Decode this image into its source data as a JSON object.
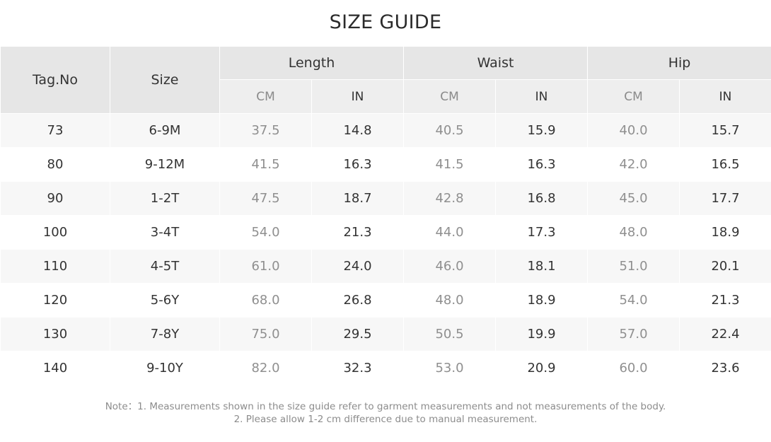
{
  "title": "SIZE GUIDE",
  "headers": {
    "tag": "Tag.No",
    "size": "Size",
    "length": "Length",
    "waist": "Waist",
    "hip": "Hip",
    "cm": "CM",
    "in": "IN"
  },
  "rows": [
    {
      "tag": "73",
      "size": "6-9M",
      "length_cm": "37.5",
      "length_in": "14.8",
      "waist_cm": "40.5",
      "waist_in": "15.9",
      "hip_cm": "40.0",
      "hip_in": "15.7"
    },
    {
      "tag": "80",
      "size": "9-12M",
      "length_cm": "41.5",
      "length_in": "16.3",
      "waist_cm": "41.5",
      "waist_in": "16.3",
      "hip_cm": "42.0",
      "hip_in": "16.5"
    },
    {
      "tag": "90",
      "size": "1-2T",
      "length_cm": "47.5",
      "length_in": "18.7",
      "waist_cm": "42.8",
      "waist_in": "16.8",
      "hip_cm": "45.0",
      "hip_in": "17.7"
    },
    {
      "tag": "100",
      "size": "3-4T",
      "length_cm": "54.0",
      "length_in": "21.3",
      "waist_cm": "44.0",
      "waist_in": "17.3",
      "hip_cm": "48.0",
      "hip_in": "18.9"
    },
    {
      "tag": "110",
      "size": "4-5T",
      "length_cm": "61.0",
      "length_in": "24.0",
      "waist_cm": "46.0",
      "waist_in": "18.1",
      "hip_cm": "51.0",
      "hip_in": "20.1"
    },
    {
      "tag": "120",
      "size": "5-6Y",
      "length_cm": "68.0",
      "length_in": "26.8",
      "waist_cm": "48.0",
      "waist_in": "18.9",
      "hip_cm": "54.0",
      "hip_in": "21.3"
    },
    {
      "tag": "130",
      "size": "7-8Y",
      "length_cm": "75.0",
      "length_in": "29.5",
      "waist_cm": "50.5",
      "waist_in": "19.9",
      "hip_cm": "57.0",
      "hip_in": "22.4"
    },
    {
      "tag": "140",
      "size": "9-10Y",
      "length_cm": "82.0",
      "length_in": "32.3",
      "waist_cm": "53.0",
      "waist_in": "20.9",
      "hip_cm": "60.0",
      "hip_in": "23.6"
    }
  ],
  "note": {
    "line1": "Note：1. Measurements shown in the size guide refer to garment measurements and not measurements of the body.",
    "line2": "2. Please allow 1-2 cm difference due to manual measurement."
  }
}
